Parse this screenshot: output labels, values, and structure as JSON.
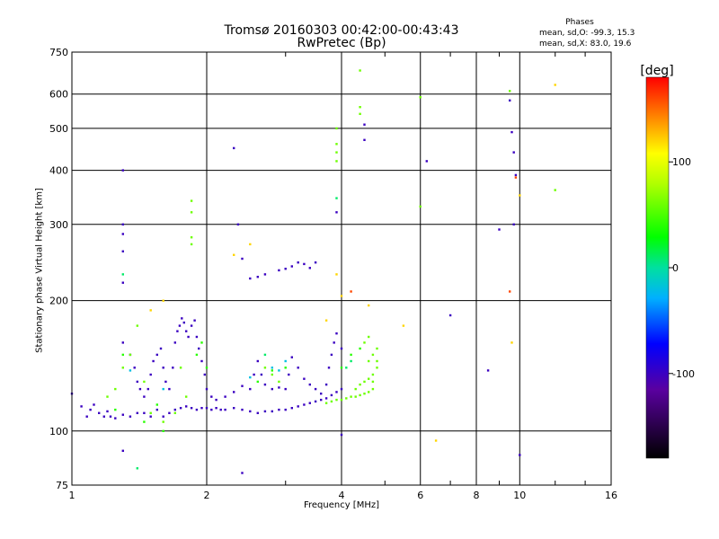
{
  "chart_data": {
    "type": "scatter",
    "title": "Tromsø 20160303 00:42:00-00:43:43",
    "subtitle": "RwPretec (Bp)",
    "xlabel": "Frequency [MHz]",
    "ylabel": "Stationary phase Virtual Height [km]",
    "x_scale": "log",
    "y_scale": "log",
    "xlim": [
      1,
      16
    ],
    "ylim": [
      75,
      750
    ],
    "xticks": [
      1,
      2,
      4,
      6,
      8,
      10,
      16
    ],
    "yticks": [
      75,
      100,
      200,
      300,
      400,
      500,
      600,
      750
    ],
    "grid": true,
    "stats": {
      "title": "Phases",
      "o_line": "mean, sd,O: -99.3, 15.3",
      "x_line": "mean, sd,X: 83.0, 19.6"
    },
    "colorbar": {
      "label": "[deg]",
      "range": [
        -180,
        180
      ],
      "ticks": [
        100,
        0,
        -100
      ]
    },
    "series": [
      {
        "phase_deg": -100,
        "points": [
          [
            1.0,
            122
          ],
          [
            1.05,
            114
          ],
          [
            1.08,
            108
          ],
          [
            1.1,
            112
          ],
          [
            1.12,
            115
          ],
          [
            1.15,
            110
          ],
          [
            1.18,
            108
          ],
          [
            1.2,
            111
          ],
          [
            1.22,
            108
          ],
          [
            1.25,
            107
          ],
          [
            1.3,
            109
          ],
          [
            1.35,
            108
          ],
          [
            1.4,
            110
          ],
          [
            1.45,
            110
          ],
          [
            1.5,
            108
          ],
          [
            1.55,
            112
          ],
          [
            1.6,
            108
          ],
          [
            1.65,
            110
          ],
          [
            1.7,
            112
          ],
          [
            1.75,
            113
          ],
          [
            1.8,
            114
          ],
          [
            1.85,
            113
          ],
          [
            1.9,
            112
          ],
          [
            1.95,
            113
          ],
          [
            2.0,
            113
          ],
          [
            2.05,
            112
          ],
          [
            2.1,
            113
          ],
          [
            2.15,
            112
          ],
          [
            2.2,
            112
          ],
          [
            2.3,
            113
          ],
          [
            2.4,
            112
          ],
          [
            2.5,
            111
          ],
          [
            2.6,
            110
          ],
          [
            2.7,
            111
          ],
          [
            2.8,
            111
          ],
          [
            2.9,
            112
          ],
          [
            3.0,
            112
          ],
          [
            3.1,
            113
          ],
          [
            3.2,
            114
          ],
          [
            3.3,
            115
          ],
          [
            3.4,
            116
          ],
          [
            3.5,
            117
          ],
          [
            3.6,
            118
          ],
          [
            3.7,
            119
          ],
          [
            3.8,
            121
          ],
          [
            3.9,
            123
          ],
          [
            4.0,
            125
          ],
          [
            1.3,
            160
          ],
          [
            1.35,
            150
          ],
          [
            1.38,
            140
          ],
          [
            1.4,
            130
          ],
          [
            1.42,
            125
          ],
          [
            1.45,
            120
          ],
          [
            1.48,
            125
          ],
          [
            1.5,
            135
          ],
          [
            1.52,
            145
          ],
          [
            1.55,
            150
          ],
          [
            1.58,
            155
          ],
          [
            1.6,
            140
          ],
          [
            1.62,
            130
          ],
          [
            1.65,
            125
          ],
          [
            1.68,
            140
          ],
          [
            1.7,
            160
          ],
          [
            1.72,
            170
          ],
          [
            1.74,
            175
          ],
          [
            1.76,
            182
          ],
          [
            1.78,
            178
          ],
          [
            1.8,
            170
          ],
          [
            1.82,
            165
          ],
          [
            1.85,
            175
          ],
          [
            1.88,
            180
          ],
          [
            1.9,
            165
          ],
          [
            1.92,
            155
          ],
          [
            1.95,
            145
          ],
          [
            1.98,
            135
          ],
          [
            2.0,
            125
          ],
          [
            2.05,
            120
          ],
          [
            2.1,
            118
          ],
          [
            2.2,
            120
          ],
          [
            2.3,
            123
          ],
          [
            2.4,
            127
          ],
          [
            2.5,
            125
          ],
          [
            2.55,
            135
          ],
          [
            2.6,
            145
          ],
          [
            2.65,
            135
          ],
          [
            2.7,
            128
          ],
          [
            2.8,
            125
          ],
          [
            2.9,
            126
          ],
          [
            3.0,
            125
          ],
          [
            3.05,
            135
          ],
          [
            3.1,
            148
          ],
          [
            3.2,
            140
          ],
          [
            3.3,
            132
          ],
          [
            3.4,
            128
          ],
          [
            3.5,
            125
          ],
          [
            3.6,
            122
          ],
          [
            3.7,
            128
          ],
          [
            3.75,
            140
          ],
          [
            3.8,
            150
          ],
          [
            3.85,
            160
          ],
          [
            3.9,
            168
          ],
          [
            4.0,
            155
          ],
          [
            2.3,
            450
          ],
          [
            2.35,
            300
          ],
          [
            2.4,
            250
          ],
          [
            2.5,
            225
          ],
          [
            2.6,
            227
          ],
          [
            2.7,
            230
          ],
          [
            2.9,
            235
          ],
          [
            3.0,
            237
          ],
          [
            3.1,
            240
          ],
          [
            3.2,
            245
          ],
          [
            3.3,
            243
          ],
          [
            3.4,
            238
          ],
          [
            3.5,
            245
          ],
          [
            1.3,
            400
          ],
          [
            1.3,
            300
          ],
          [
            1.3,
            285
          ],
          [
            1.3,
            260
          ],
          [
            1.3,
            220
          ],
          [
            1.3,
            90
          ],
          [
            2.4,
            80
          ],
          [
            4.0,
            98
          ],
          [
            4.5,
            470
          ],
          [
            4.5,
            510
          ],
          [
            6.2,
            420
          ],
          [
            7.0,
            185
          ],
          [
            9.0,
            292
          ],
          [
            8.5,
            138
          ],
          [
            9.5,
            580
          ],
          [
            9.6,
            490
          ],
          [
            9.7,
            440
          ],
          [
            9.8,
            390
          ],
          [
            9.7,
            300
          ],
          [
            10.0,
            88
          ],
          [
            3.9,
            320
          ]
        ]
      },
      {
        "phase_deg": 60,
        "points": [
          [
            3.7,
            116
          ],
          [
            3.8,
            117
          ],
          [
            3.9,
            118
          ],
          [
            4.0,
            118
          ],
          [
            4.1,
            119
          ],
          [
            4.2,
            120
          ],
          [
            4.3,
            120
          ],
          [
            4.4,
            121
          ],
          [
            4.5,
            122
          ],
          [
            4.6,
            123
          ],
          [
            4.7,
            125
          ],
          [
            4.3,
            125
          ],
          [
            4.4,
            128
          ],
          [
            4.5,
            130
          ],
          [
            4.6,
            132
          ],
          [
            4.7,
            135
          ],
          [
            4.8,
            140
          ],
          [
            4.6,
            145
          ],
          [
            4.7,
            150
          ],
          [
            4.8,
            155
          ],
          [
            4.5,
            160
          ],
          [
            4.6,
            165
          ],
          [
            1.2,
            120
          ],
          [
            1.25,
            125
          ],
          [
            1.3,
            140
          ],
          [
            1.35,
            150
          ],
          [
            1.4,
            175
          ],
          [
            1.45,
            130
          ],
          [
            1.5,
            110
          ],
          [
            1.6,
            105
          ],
          [
            1.7,
            110
          ],
          [
            1.75,
            140
          ],
          [
            1.8,
            120
          ],
          [
            1.85,
            340
          ],
          [
            1.85,
            320
          ],
          [
            1.85,
            280
          ],
          [
            1.85,
            270
          ],
          [
            3.9,
            420
          ],
          [
            3.9,
            440
          ],
          [
            3.9,
            460
          ],
          [
            3.9,
            500
          ],
          [
            4.4,
            540
          ],
          [
            4.4,
            560
          ],
          [
            4.4,
            680
          ],
          [
            6.0,
            330
          ],
          [
            6.0,
            590
          ],
          [
            9.5,
            610
          ],
          [
            12.0,
            360
          ],
          [
            4.7,
            130
          ],
          [
            4.8,
            145
          ],
          [
            2.7,
            140
          ],
          [
            2.8,
            135
          ],
          [
            2.9,
            130
          ]
        ]
      },
      {
        "phase_deg": 40,
        "points": [
          [
            1.25,
            112
          ],
          [
            1.3,
            150
          ],
          [
            1.45,
            105
          ],
          [
            1.55,
            115
          ],
          [
            1.6,
            100
          ],
          [
            2.6,
            130
          ],
          [
            2.8,
            138
          ],
          [
            3.0,
            140
          ],
          [
            4.0,
            140
          ],
          [
            4.2,
            150
          ],
          [
            4.4,
            155
          ],
          [
            1.9,
            150
          ],
          [
            1.95,
            160
          ],
          [
            2.0,
            140
          ]
        ]
      },
      {
        "phase_deg": 10,
        "points": [
          [
            3.9,
            345
          ],
          [
            4.1,
            140
          ],
          [
            4.2,
            145
          ],
          [
            1.4,
            82
          ],
          [
            2.7,
            150
          ],
          [
            1.3,
            230
          ]
        ]
      },
      {
        "phase_deg": 120,
        "points": [
          [
            1.6,
            200
          ],
          [
            2.5,
            270
          ],
          [
            2.3,
            255
          ],
          [
            3.9,
            230
          ],
          [
            4.0,
            205
          ],
          [
            4.6,
            195
          ],
          [
            5.5,
            175
          ],
          [
            6.5,
            95
          ],
          [
            10.0,
            350
          ],
          [
            12.0,
            630
          ],
          [
            1.5,
            190
          ],
          [
            3.7,
            180
          ],
          [
            9.6,
            160
          ]
        ]
      },
      {
        "phase_deg": 160,
        "points": [
          [
            9.8,
            385
          ],
          [
            4.2,
            210
          ],
          [
            9.5,
            210
          ]
        ]
      },
      {
        "phase_deg": -20,
        "points": [
          [
            2.8,
            140
          ],
          [
            2.9,
            138
          ],
          [
            3.0,
            145
          ],
          [
            1.6,
            125
          ],
          [
            1.35,
            138
          ],
          [
            2.5,
            133
          ]
        ]
      }
    ]
  }
}
